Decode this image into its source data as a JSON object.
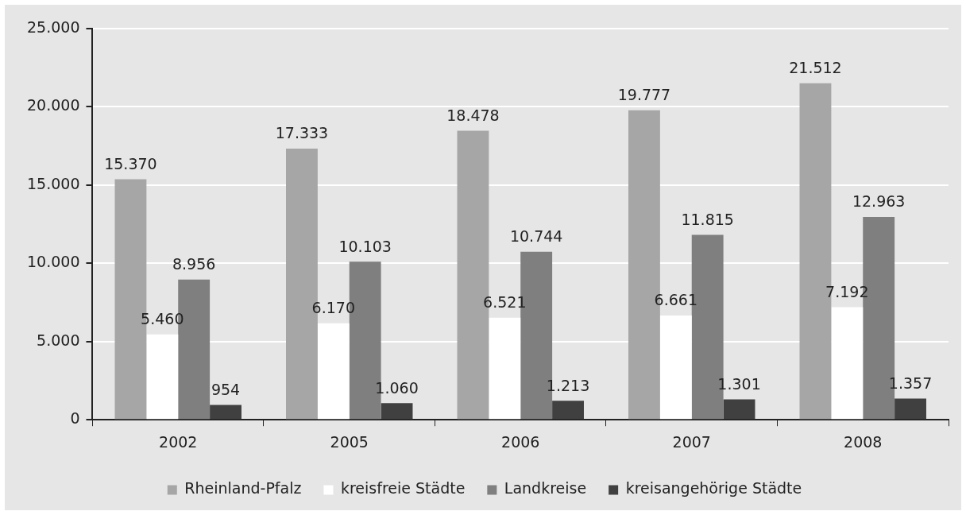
{
  "chart_data": {
    "type": "bar",
    "categories": [
      "2002",
      "2005",
      "2006",
      "2007",
      "2008"
    ],
    "series": [
      {
        "name": "Rheinland-Pfalz",
        "color": "#a6a6a6",
        "values": [
          15370,
          17333,
          18478,
          19777,
          21512
        ],
        "value_labels": [
          "15.370",
          "17.333",
          "18.478",
          "19.777",
          "21.512"
        ]
      },
      {
        "name": "kreisfreie Städte",
        "color": "#ffffff",
        "values": [
          5460,
          6170,
          6521,
          6661,
          7192
        ],
        "value_labels": [
          "5.460",
          "6.170",
          "6.521",
          "6.661",
          "7.192"
        ]
      },
      {
        "name": "Landkreise",
        "color": "#7f7f7f",
        "values": [
          8956,
          10103,
          10744,
          11815,
          12963
        ],
        "value_labels": [
          "8.956",
          "10.103",
          "10.744",
          "11.815",
          "12.963"
        ]
      },
      {
        "name": "kreisangehörige Städte",
        "color": "#404040",
        "values": [
          954,
          1060,
          1213,
          1301,
          1357
        ],
        "value_labels": [
          "954",
          "1.060",
          "1.213",
          "1.301",
          "1.357"
        ]
      }
    ],
    "ylim": [
      0,
      25000
    ],
    "yticks": [
      {
        "value": 0,
        "label": "0"
      },
      {
        "value": 5000,
        "label": "5.000"
      },
      {
        "value": 10000,
        "label": "10.000"
      },
      {
        "value": 15000,
        "label": "15.000"
      },
      {
        "value": 20000,
        "label": "20.000"
      },
      {
        "value": 25000,
        "label": "25.000"
      }
    ],
    "grid": "y",
    "legend": "bottom"
  }
}
